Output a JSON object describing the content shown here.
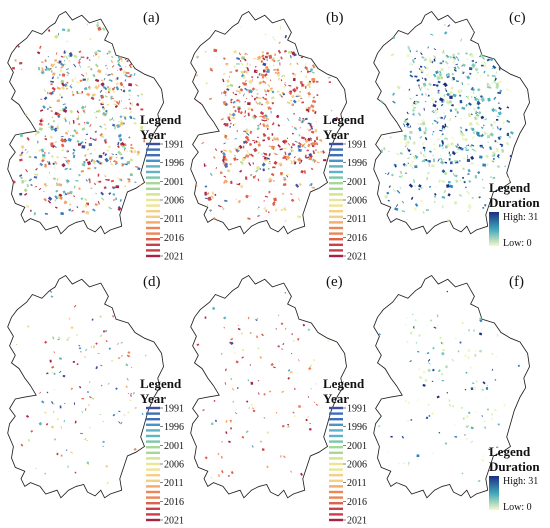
{
  "panels": [
    {
      "id": "a",
      "label": "(a)",
      "legend_type": "year",
      "style": "mixed",
      "density": 1.0
    },
    {
      "id": "b",
      "label": "(b)",
      "legend_type": "year",
      "style": "late",
      "density": 1.0
    },
    {
      "id": "c",
      "label": "(c)",
      "legend_type": "duration",
      "style": "duration",
      "density": 1.0
    },
    {
      "id": "d",
      "label": "(d)",
      "legend_type": "year",
      "style": "mixed",
      "density": 0.22
    },
    {
      "id": "e",
      "label": "(e)",
      "legend_type": "year",
      "style": "late",
      "density": 0.2
    },
    {
      "id": "f",
      "label": "(f)",
      "legend_type": "duration",
      "style": "duration",
      "density": 0.22
    }
  ],
  "year_legend": {
    "title_line1": "Legend",
    "title_line2": "Year",
    "ticks": [
      "1991",
      "1996",
      "2001",
      "2006",
      "2011",
      "2016",
      "2021"
    ],
    "colors": [
      "#3a4fa0",
      "#3e70b8",
      "#4a93c6",
      "#5fb3c4",
      "#7cc7a8",
      "#a6d796",
      "#d1e58c",
      "#eee496",
      "#f5cf83",
      "#f4ab69",
      "#ed8657",
      "#df604b",
      "#c9404a",
      "#a52346"
    ]
  },
  "duration_legend": {
    "title_line1": "Legend",
    "title_line2": "Duration",
    "high_label": "High: 31",
    "low_label": "Low: 0",
    "color_high": "#1c2e82",
    "color_mid": "#3ea6b8",
    "color_low": "#f7f8c8"
  },
  "colors": {
    "outline": "#222222",
    "background": "#ffffff"
  }
}
